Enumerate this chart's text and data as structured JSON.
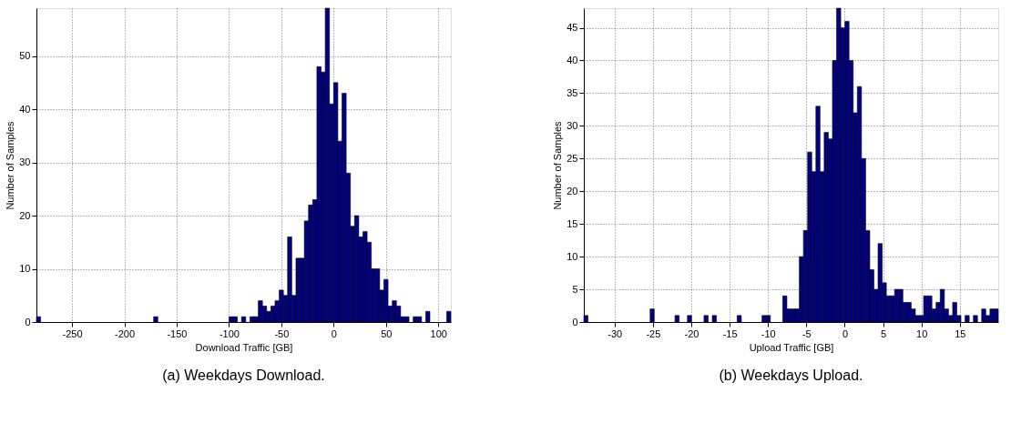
{
  "chart_data": [
    {
      "type": "histogram",
      "title": "(a) Weekdays Download.",
      "xlabel": "Download Traffic [GB]",
      "ylabel": "Number of Samples",
      "color": "#000080",
      "bins": [
        -284,
        -280,
        -276,
        -272,
        -268,
        -264,
        -260,
        -256,
        -252,
        -248,
        -244,
        -240,
        -236,
        -232,
        -228,
        -224,
        -220,
        -216,
        -212,
        -208,
        -204,
        -200,
        -196,
        -192,
        -188,
        -184,
        -180,
        -176,
        -172,
        -168,
        -164,
        -160,
        -156,
        -152,
        -148,
        -144,
        -140,
        -136,
        -132,
        -128,
        -124,
        -120,
        -116,
        -112,
        -108,
        -104,
        -100,
        -96,
        -92,
        -88,
        -84,
        -80,
        -76,
        -72,
        -68,
        -64,
        -60,
        -56,
        -52,
        -48,
        -44,
        -40,
        -36,
        -32,
        -28,
        -24,
        -20,
        -16,
        -12,
        -8,
        -4,
        0,
        4,
        8,
        12,
        16,
        20,
        24,
        28,
        32,
        36,
        40,
        44,
        48,
        52,
        56,
        60,
        64,
        68,
        72,
        76,
        80,
        84,
        88,
        92,
        96,
        100,
        104,
        108,
        112
      ],
      "values": [
        1,
        0,
        0,
        0,
        0,
        0,
        0,
        0,
        0,
        0,
        0,
        0,
        0,
        0,
        0,
        0,
        0,
        0,
        0,
        0,
        0,
        0,
        0,
        0,
        0,
        0,
        0,
        0,
        1,
        0,
        0,
        0,
        0,
        0,
        0,
        0,
        0,
        0,
        0,
        0,
        0,
        0,
        0,
        0,
        0,
        0,
        1,
        1,
        0,
        1,
        0,
        1,
        1,
        4,
        3,
        2,
        3,
        4,
        6,
        5,
        16,
        5,
        12,
        12,
        19,
        22,
        23,
        48,
        47,
        59,
        41,
        45,
        34,
        43,
        28,
        18,
        20,
        16,
        17,
        15,
        10,
        10,
        6,
        8,
        3,
        4,
        3,
        1,
        1,
        0,
        1,
        1,
        0,
        2,
        0,
        0,
        0,
        0,
        2
      ],
      "xlim": [
        -284,
        112
      ],
      "ylim": [
        0,
        59
      ],
      "xticks": [
        -250,
        -200,
        -150,
        -100,
        -50,
        0,
        50,
        100
      ],
      "yticks": [
        0,
        10,
        20,
        30,
        40,
        50
      ],
      "grid": true
    },
    {
      "type": "histogram",
      "title": "(b) Weekdays Upload.",
      "xlabel": "Upload Traffic [GB]",
      "ylabel": "Number of Samples",
      "color": "#000080",
      "bins": [
        -34,
        -33.46,
        -32.92,
        -32.38,
        -31.84,
        -31.3,
        -30.76,
        -30.22,
        -29.68,
        -29.14,
        -28.6,
        -28.06,
        -27.52,
        -26.98,
        -26.44,
        -25.9,
        -25.36,
        -24.82,
        -24.28,
        -23.74,
        -23.2,
        -22.66,
        -22.12,
        -21.58,
        -21.04,
        -20.5,
        -19.96,
        -19.42,
        -18.88,
        -18.34,
        -17.8,
        -17.26,
        -16.72,
        -16.18,
        -15.64,
        -15.1,
        -14.56,
        -14.02,
        -13.48,
        -12.94,
        -12.4,
        -11.86,
        -11.32,
        -10.78,
        -10.24,
        -9.7,
        -9.16,
        -8.62,
        -8.08,
        -7.54,
        -7,
        -6.46,
        -5.92,
        -5.38,
        -4.84,
        -4.3,
        -3.76,
        -3.22,
        -2.68,
        -2.14,
        -1.6,
        -1.06,
        -0.52,
        0.02,
        0.56,
        1.1,
        1.64,
        2.18,
        2.72,
        3.26,
        3.8,
        4.34,
        4.88,
        5.42,
        5.96,
        6.5,
        7.04,
        7.58,
        8.12,
        8.66,
        9.2,
        9.74,
        10.28,
        10.82,
        11.36,
        11.9,
        12.44,
        12.98,
        13.52,
        14.06,
        14.6,
        15.14,
        15.68,
        16.22,
        16.76,
        17.3,
        17.84,
        18.38,
        18.92,
        19.46,
        20
      ],
      "values": [
        1,
        0,
        0,
        0,
        0,
        0,
        0,
        0,
        0,
        0,
        0,
        0,
        0,
        0,
        0,
        0,
        2,
        0,
        0,
        0,
        0,
        0,
        1,
        0,
        0,
        1,
        0,
        0,
        0,
        1,
        0,
        1,
        0,
        0,
        0,
        0,
        0,
        1,
        0,
        0,
        0,
        0,
        0,
        1,
        1,
        0,
        0,
        0,
        4,
        2,
        2,
        2,
        10,
        14,
        26,
        23,
        33,
        23,
        29,
        28,
        40,
        48,
        45,
        46,
        40,
        32,
        36,
        25,
        14,
        8,
        5,
        12,
        6,
        4,
        4,
        5,
        5,
        3,
        3,
        2,
        1,
        1,
        4,
        4,
        2,
        3,
        5,
        2,
        1,
        3,
        1,
        0,
        1,
        0,
        1,
        0,
        2,
        1,
        2,
        2
      ],
      "xlim": [
        -34,
        20
      ],
      "ylim": [
        0,
        48
      ],
      "xticks": [
        -30,
        -25,
        -20,
        -15,
        -10,
        -5,
        0,
        5,
        10,
        15
      ],
      "yticks": [
        0,
        5,
        10,
        15,
        20,
        25,
        30,
        35,
        40,
        45
      ],
      "grid": true
    }
  ]
}
